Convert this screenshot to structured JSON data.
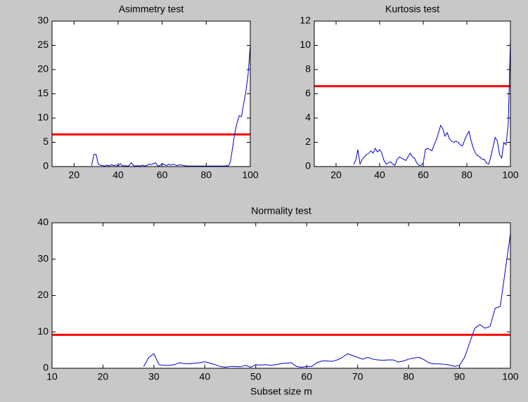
{
  "chart_data": [
    {
      "type": "line",
      "title": "Asimmetry test",
      "color": "#0000cc",
      "x": [
        28,
        29,
        30,
        31,
        32,
        33,
        34,
        35,
        36,
        37,
        38,
        39,
        40,
        41,
        42,
        43,
        44,
        45,
        46,
        47,
        48,
        49,
        50,
        51,
        52,
        53,
        54,
        55,
        56,
        57,
        58,
        59,
        60,
        61,
        62,
        63,
        64,
        65,
        66,
        67,
        68,
        69,
        70,
        71,
        72,
        73,
        74,
        75,
        76,
        77,
        78,
        79,
        80,
        81,
        82,
        83,
        84,
        85,
        86,
        87,
        88,
        89,
        90,
        91,
        92,
        93,
        94,
        95,
        96,
        97,
        98,
        99,
        100
      ],
      "values": [
        0.2,
        2.5,
        2.5,
        0.5,
        0.3,
        0.2,
        0.1,
        0.3,
        0.1,
        0.4,
        0.2,
        0.3,
        0.1,
        0.6,
        0.1,
        0.2,
        0.1,
        0.2,
        0.8,
        0.2,
        0.1,
        0.2,
        0.1,
        0.3,
        0.1,
        0.2,
        0.5,
        0.4,
        0.6,
        0.8,
        0.1,
        0.2,
        0.6,
        0.4,
        0.2,
        0.5,
        0.3,
        0.5,
        0.3,
        0.2,
        0.4,
        0.3,
        0.2,
        0.1,
        0.1,
        0.1,
        0.1,
        0.1,
        0.1,
        0.1,
        0.1,
        0.1,
        0.1,
        0.1,
        0.1,
        0.1,
        0.1,
        0.1,
        0.1,
        0.1,
        0.1,
        0.2,
        0.1,
        1,
        4,
        7,
        9,
        10.5,
        10.3,
        13,
        15.5,
        19,
        25
      ],
      "reference_line": {
        "value": 6.63,
        "color": "#ff0000"
      },
      "xlim": [
        10,
        100
      ],
      "xticks": [
        20,
        40,
        60,
        80,
        100
      ],
      "ylim": [
        0,
        30
      ],
      "yticks": [
        0,
        5,
        10,
        15,
        20,
        25,
        30
      ]
    },
    {
      "type": "line",
      "title": "Kurtosis test",
      "color": "#0000cc",
      "x": [
        28,
        29,
        30,
        31,
        32,
        33,
        34,
        35,
        36,
        37,
        38,
        39,
        40,
        41,
        42,
        43,
        44,
        45,
        46,
        47,
        48,
        49,
        50,
        51,
        52,
        53,
        54,
        55,
        56,
        57,
        58,
        59,
        60,
        61,
        62,
        63,
        64,
        65,
        66,
        67,
        68,
        69,
        70,
        71,
        72,
        73,
        74,
        75,
        76,
        77,
        78,
        79,
        80,
        81,
        82,
        83,
        84,
        85,
        86,
        87,
        88,
        89,
        90,
        91,
        92,
        93,
        94,
        95,
        96,
        97,
        98,
        99,
        100
      ],
      "values": [
        0.2,
        0.5,
        1.4,
        0.2,
        0.6,
        0.8,
        1,
        1.1,
        1.3,
        1.1,
        1.5,
        1.2,
        1.4,
        1.1,
        0.5,
        0.2,
        0.3,
        0.4,
        0.2,
        0.1,
        0.6,
        0.8,
        0.7,
        0.6,
        0.5,
        0.8,
        1.1,
        0.8,
        0.7,
        0.3,
        0.1,
        0.1,
        0.3,
        1.4,
        1.5,
        1.4,
        1.3,
        1.8,
        2.2,
        2.8,
        3.4,
        3.1,
        2.5,
        2.8,
        2.3,
        2.1,
        2.0,
        2.1,
        2.0,
        1.8,
        1.7,
        2.2,
        2.6,
        2.9,
        2.1,
        1.5,
        1.1,
        0.9,
        0.8,
        0.6,
        0.6,
        0.3,
        0.2,
        0.8,
        1.6,
        2.4,
        2.1,
        1.0,
        0.7,
        2.0,
        1.8,
        3.5,
        10.5
      ],
      "reference_line": {
        "value": 6.63,
        "color": "#ff0000"
      },
      "xlim": [
        10,
        100
      ],
      "xticks": [
        20,
        40,
        60,
        80,
        100
      ],
      "ylim": [
        0,
        12
      ],
      "yticks": [
        0,
        2,
        4,
        6,
        8,
        10,
        12
      ]
    },
    {
      "type": "line",
      "title": "Normality test",
      "xlabel": "Subset size m",
      "color": "#0000cc",
      "x": [
        28,
        29,
        30,
        31,
        32,
        33,
        34,
        35,
        36,
        37,
        38,
        39,
        40,
        41,
        42,
        43,
        44,
        45,
        46,
        47,
        48,
        49,
        50,
        51,
        52,
        53,
        54,
        55,
        56,
        57,
        58,
        59,
        60,
        61,
        62,
        63,
        64,
        65,
        66,
        67,
        68,
        69,
        70,
        71,
        72,
        73,
        74,
        75,
        76,
        77,
        78,
        79,
        80,
        81,
        82,
        83,
        84,
        85,
        86,
        87,
        88,
        89,
        90,
        91,
        92,
        93,
        94,
        95,
        96,
        97,
        98,
        99,
        100
      ],
      "values": [
        0.5,
        3,
        4,
        1,
        0.8,
        0.8,
        1,
        1.5,
        1.3,
        1.2,
        1.4,
        1.5,
        1.8,
        1.4,
        1,
        0.5,
        0.3,
        0.5,
        0.5,
        0.4,
        0.8,
        0.3,
        1,
        0.9,
        1,
        0.8,
        1,
        1.3,
        1.4,
        1.5,
        0.5,
        0.3,
        0.5,
        0.5,
        1.5,
        2,
        2,
        1.9,
        2.3,
        3,
        4,
        3.5,
        3,
        2.5,
        3,
        2.5,
        2.3,
        2.2,
        2.3,
        2.3,
        1.7,
        2,
        2.5,
        2.8,
        3,
        2.4,
        1.5,
        1.2,
        1.2,
        1.1,
        0.9,
        0.5,
        0.8,
        3,
        7,
        11,
        12,
        11,
        11.5,
        16.5,
        17,
        27,
        37
      ],
      "reference_line": {
        "value": 9.21,
        "color": "#ff0000"
      },
      "xlim": [
        10,
        100
      ],
      "xticks": [
        10,
        20,
        30,
        40,
        50,
        60,
        70,
        80,
        90,
        100
      ],
      "ylim": [
        0,
        40
      ],
      "yticks": [
        0,
        10,
        20,
        30,
        40
      ]
    }
  ]
}
